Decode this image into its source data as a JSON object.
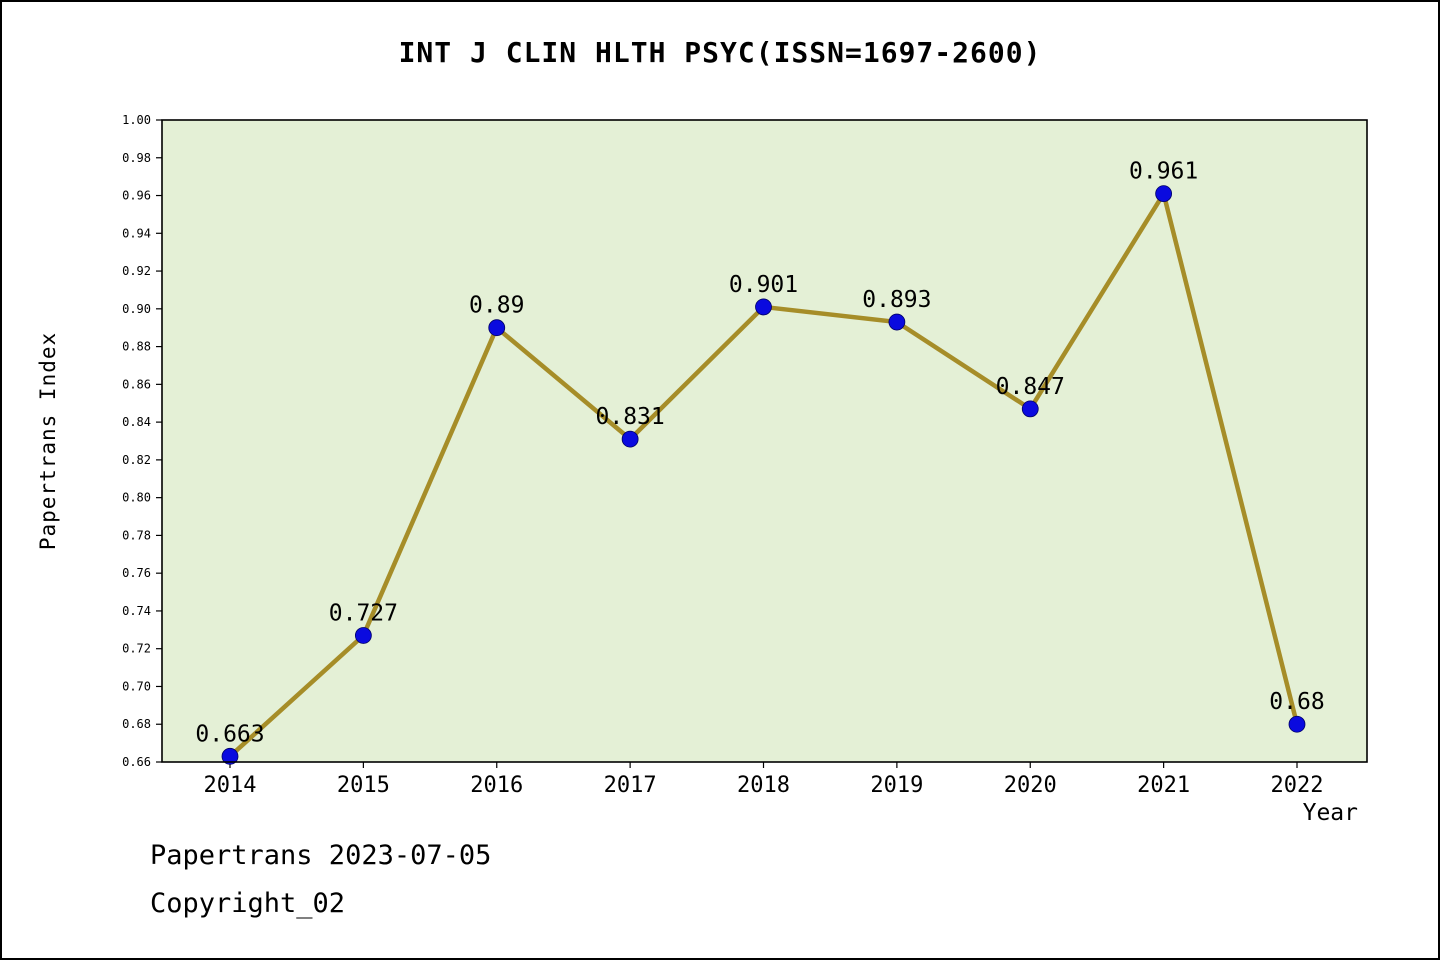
{
  "title": "INT J CLIN HLTH PSYC(ISSN=1697-2600)",
  "footer": {
    "line1": "Papertrans 2023-07-05",
    "line2": "Copyright_02"
  },
  "chart_data": {
    "type": "line",
    "title": "INT J CLIN HLTH PSYC(ISSN=1697-2600)",
    "xlabel": "Year",
    "ylabel": "Papertrans Index",
    "x": [
      2014,
      2015,
      2016,
      2017,
      2018,
      2019,
      2020,
      2021,
      2022
    ],
    "values": [
      0.663,
      0.727,
      0.89,
      0.831,
      0.901,
      0.893,
      0.847,
      0.961,
      0.68
    ],
    "point_labels": [
      "0.663",
      "0.727",
      "0.89",
      "0.831",
      "0.901",
      "0.893",
      "0.847",
      "0.961",
      "0.68"
    ],
    "ylim": [
      0.66,
      1.0
    ],
    "ytick_step": 0.02,
    "grid": false,
    "legend": "none",
    "colors": {
      "line": "#a68d28",
      "marker": "#0a0adf",
      "plot_bg": "#e4f0d6",
      "axis": "#000000",
      "text": "#000000"
    }
  }
}
